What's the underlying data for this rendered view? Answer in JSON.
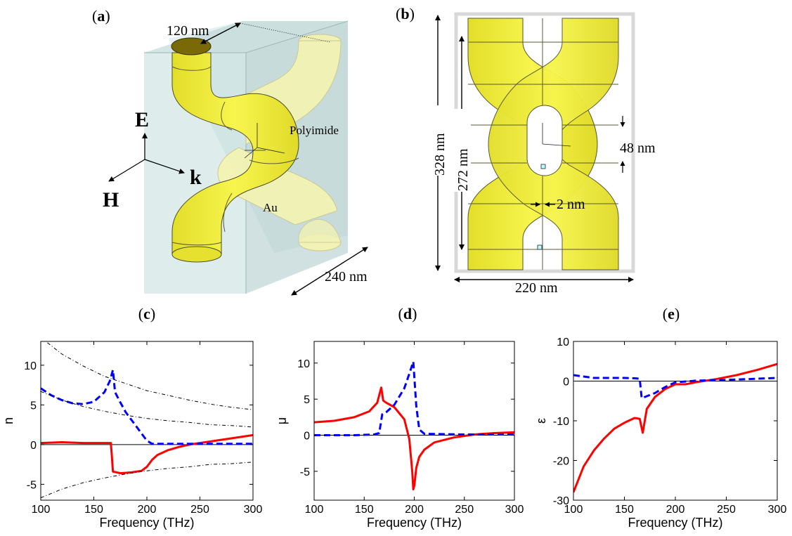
{
  "figure": {
    "panels": {
      "a": {
        "label_open": "(",
        "label_letter": "a",
        "label_close": ")",
        "diameter_label": "120 nm",
        "material_host": "Polyimide",
        "material_wire": "Au",
        "field_e": "E",
        "field_h": "H",
        "field_k": "k",
        "depth_label": "240 nm"
      },
      "b": {
        "label_open": "(",
        "label_letter": "b",
        "label_close": ")",
        "height_outer": "328 nm",
        "height_inner": "272 nm",
        "gap_vertical": "48 nm",
        "gap_horizontal": "2 nm",
        "width_label": "220 nm"
      }
    },
    "colors": {
      "gold": "#f2ef3c",
      "gold_light": "#f7f6a8",
      "box": "#c6dede",
      "red": "#ff0000",
      "blue": "#0000ff"
    }
  },
  "chart_data": [
    {
      "panel": "(c)",
      "label_open": "(",
      "label_letter": "c",
      "label_close": ")",
      "type": "line",
      "xlabel": "Frequency (THz)",
      "ylabel": "n",
      "xlim": [
        100,
        300
      ],
      "ylim": [
        -7,
        13
      ],
      "xticks": [
        100,
        150,
        200,
        250,
        300
      ],
      "yticks": [
        -5,
        0,
        5,
        10
      ],
      "series": [
        {
          "style": "solid",
          "color": "#ff0000",
          "x": [
            100,
            120,
            140,
            160,
            166,
            167,
            168,
            175,
            185,
            195,
            200,
            205,
            210,
            220,
            230,
            240,
            250,
            260,
            270,
            280,
            290,
            300
          ],
          "y": [
            0.2,
            0.3,
            0.2,
            0.2,
            0.2,
            -1.5,
            -3.4,
            -3.6,
            -3.5,
            -3.3,
            -2.8,
            -1.9,
            -1.3,
            -0.7,
            -0.3,
            0.0,
            0.2,
            0.4,
            0.6,
            0.8,
            1.0,
            1.2
          ]
        },
        {
          "style": "dashed",
          "color": "#0000ff",
          "x": [
            100,
            110,
            120,
            130,
            140,
            150,
            160,
            165,
            168,
            170,
            175,
            180,
            185,
            190,
            195,
            200,
            205,
            210,
            250,
            300
          ],
          "y": [
            7.1,
            6.2,
            5.6,
            5.2,
            5.1,
            5.4,
            6.6,
            8.0,
            9.4,
            6.6,
            5.3,
            4.1,
            3.2,
            2.3,
            1.4,
            0.5,
            0.1,
            0.1,
            0.1,
            0.1
          ]
        },
        {
          "style": "dashdot",
          "color": "#000000",
          "x": [
            100,
            120,
            140,
            160,
            180,
            200,
            220,
            240,
            260,
            280,
            300
          ],
          "y": [
            13.5,
            11.4,
            9.9,
            8.6,
            7.7,
            6.8,
            6.2,
            5.6,
            5.1,
            4.7,
            4.4
          ]
        },
        {
          "style": "dashdot",
          "color": "#000000",
          "x": [
            100,
            120,
            140,
            160,
            180,
            200,
            220,
            240,
            260,
            280,
            300
          ],
          "y": [
            6.7,
            5.6,
            4.8,
            4.2,
            3.7,
            3.3,
            3.0,
            2.8,
            2.5,
            2.4,
            2.2
          ]
        },
        {
          "style": "dashdot",
          "color": "#000000",
          "x": [
            100,
            120,
            140,
            160,
            180,
            200,
            220,
            240,
            260,
            280,
            300
          ],
          "y": [
            -6.7,
            -5.6,
            -4.8,
            -4.2,
            -3.7,
            -3.3,
            -3.0,
            -2.8,
            -2.5,
            -2.4,
            -2.2
          ]
        }
      ]
    },
    {
      "panel": "(d)",
      "label_open": "(",
      "label_letter": "d",
      "label_close": ")",
      "type": "line",
      "xlabel": "Frequency (THz)",
      "ylabel": "μ",
      "xlim": [
        100,
        300
      ],
      "ylim": [
        -9,
        13
      ],
      "xticks": [
        100,
        150,
        200,
        250,
        300
      ],
      "yticks": [
        -5,
        0,
        5,
        10
      ],
      "series": [
        {
          "style": "solid",
          "color": "#ff0000",
          "x": [
            100,
            120,
            140,
            155,
            163,
            167,
            169,
            172,
            180,
            190,
            195,
            198,
            199,
            200,
            202,
            205,
            210,
            220,
            240,
            260,
            280,
            300
          ],
          "y": [
            1.8,
            2.0,
            2.5,
            3.3,
            4.5,
            6.6,
            4.8,
            4.5,
            3.9,
            2.2,
            -0.5,
            -5.0,
            -7.5,
            -7.0,
            -4.5,
            -3.0,
            -2.0,
            -1.0,
            -0.3,
            0.1,
            0.3,
            0.4
          ]
        },
        {
          "style": "dashed",
          "color": "#0000ff",
          "x": [
            100,
            120,
            140,
            160,
            165,
            168,
            172,
            180,
            190,
            195,
            199,
            202,
            205,
            210,
            250,
            300
          ],
          "y": [
            0.0,
            0.0,
            0.0,
            0.1,
            0.3,
            2.9,
            3.2,
            4.2,
            6.5,
            8.5,
            10.2,
            4.0,
            0.8,
            0.2,
            0.1,
            0.1
          ]
        }
      ]
    },
    {
      "panel": "(e)",
      "label_open": "(",
      "label_letter": "e",
      "label_close": ")",
      "type": "line",
      "xlabel": "Frequency (THz)",
      "ylabel": "ε",
      "xlim": [
        100,
        300
      ],
      "ylim": [
        -30,
        10
      ],
      "xticks": [
        100,
        150,
        200,
        250,
        300
      ],
      "yticks": [
        -30,
        -20,
        -10,
        0,
        10
      ],
      "series": [
        {
          "style": "solid",
          "color": "#ff0000",
          "x": [
            100,
            110,
            120,
            130,
            140,
            150,
            160,
            165,
            168,
            172,
            180,
            190,
            200,
            210,
            220,
            240,
            260,
            280,
            300
          ],
          "y": [
            -28.0,
            -21.5,
            -17.5,
            -14.5,
            -12.0,
            -10.5,
            -9.3,
            -9.5,
            -13.0,
            -7.0,
            -4.0,
            -2.0,
            -0.8,
            -0.8,
            -0.3,
            0.5,
            1.5,
            2.8,
            4.3
          ]
        },
        {
          "style": "dashed",
          "color": "#0000ff",
          "x": [
            100,
            120,
            140,
            150,
            160,
            165,
            167,
            170,
            180,
            190,
            200,
            220,
            250,
            300
          ],
          "y": [
            1.5,
            0.8,
            0.8,
            0.8,
            0.7,
            0.6,
            -4.3,
            -4.0,
            -3.0,
            -1.5,
            -0.3,
            0.1,
            0.3,
            0.8
          ]
        }
      ]
    }
  ]
}
